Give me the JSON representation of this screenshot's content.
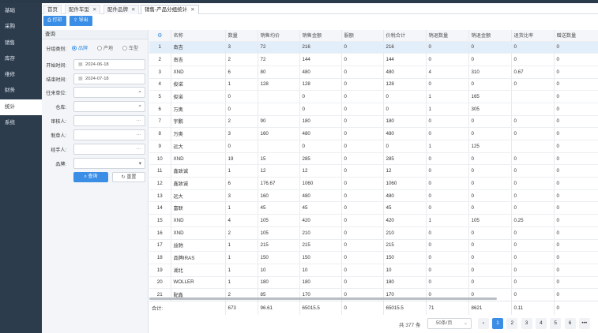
{
  "sidebar": {
    "items": [
      {
        "label": "基础",
        "active": false
      },
      {
        "label": "采购",
        "active": false
      },
      {
        "label": "销售",
        "active": false
      },
      {
        "label": "库存",
        "active": false
      },
      {
        "label": "维修",
        "active": false
      },
      {
        "label": "财务",
        "active": false
      },
      {
        "label": "统计",
        "active": true
      },
      {
        "label": "系统",
        "active": false
      }
    ]
  },
  "tabs": [
    {
      "label": "首页",
      "closable": false,
      "active": false
    },
    {
      "label": "配件车型",
      "closable": true,
      "active": false
    },
    {
      "label": "配件品牌",
      "closable": true,
      "active": false
    },
    {
      "label": "销售-产品分组统计",
      "closable": true,
      "active": true
    }
  ],
  "toolbar": {
    "print_label": "打印",
    "export_label": "导出"
  },
  "query": {
    "title": "查询",
    "group_label": "分组类别:",
    "group_options": [
      "品牌",
      "产地",
      "车型"
    ],
    "group_selected": "品牌",
    "start_label": "开始时间:",
    "start_value": "2024-06-18",
    "end_label": "结束时间:",
    "end_value": "2024-07-18",
    "unit_label": "往来单位:",
    "warehouse_label": "仓库:",
    "auditor_label": "审核人:",
    "maker_label": "制单人:",
    "handler_label": "经手人:",
    "brand_label": "品牌:",
    "search_btn": "查询",
    "reset_btn": "重置"
  },
  "table": {
    "columns": [
      "名称",
      "数量",
      "销售均价",
      "销售金额",
      "服额",
      "价税合计",
      "销退数量",
      "销退金额",
      "退货比率",
      "赠送数量"
    ],
    "rows": [
      [
        "1",
        "南吉",
        "3",
        "72",
        "216",
        "0",
        "216",
        "0",
        "0",
        "0",
        "0"
      ],
      [
        "2",
        "南吉",
        "2",
        "72",
        "144",
        "0",
        "144",
        "0",
        "0",
        "0",
        "0"
      ],
      [
        "3",
        "XND",
        "6",
        "80",
        "480",
        "0",
        "480",
        "4",
        "310",
        "0.67",
        "0"
      ],
      [
        "4",
        "俊诺",
        "1",
        "128",
        "128",
        "0",
        "128",
        "0",
        "0",
        "0",
        "0"
      ],
      [
        "5",
        "俊诺",
        "0",
        "",
        "0",
        "0",
        "0",
        "1",
        "165",
        "",
        "0"
      ],
      [
        "6",
        "万奥",
        "0",
        "",
        "0",
        "0",
        "0",
        "1",
        "305",
        "",
        "0"
      ],
      [
        "7",
        "宇鹏",
        "2",
        "90",
        "180",
        "0",
        "180",
        "0",
        "0",
        "0",
        "0"
      ],
      [
        "8",
        "万奥",
        "3",
        "160",
        "480",
        "0",
        "480",
        "0",
        "0",
        "0",
        "0"
      ],
      [
        "9",
        "远大",
        "0",
        "",
        "0",
        "0",
        "0",
        "1",
        "125",
        "",
        "0"
      ],
      [
        "10",
        "XND",
        "19",
        "15",
        "285",
        "0",
        "285",
        "0",
        "0",
        "0",
        "0"
      ],
      [
        "11",
        "鑫致诚",
        "1",
        "12",
        "12",
        "0",
        "12",
        "0",
        "0",
        "0",
        "0"
      ],
      [
        "12",
        "鑫致诚",
        "6",
        "176.67",
        "1060",
        "0",
        "1060",
        "0",
        "0",
        "0",
        "0"
      ],
      [
        "13",
        "远大",
        "3",
        "160",
        "480",
        "0",
        "480",
        "0",
        "0",
        "0",
        "0"
      ],
      [
        "14",
        "富联",
        "1",
        "45",
        "45",
        "0",
        "45",
        "0",
        "0",
        "0",
        "0"
      ],
      [
        "15",
        "XND",
        "4",
        "105",
        "420",
        "0",
        "420",
        "1",
        "105",
        "0.25",
        "0"
      ],
      [
        "16",
        "XND",
        "2",
        "105",
        "210",
        "0",
        "210",
        "0",
        "0",
        "0",
        "0"
      ],
      [
        "17",
        "益驰",
        "1",
        "215",
        "215",
        "0",
        "215",
        "0",
        "0",
        "0",
        "0"
      ],
      [
        "18",
        "品牌IRAS",
        "1",
        "150",
        "150",
        "0",
        "150",
        "0",
        "0",
        "0",
        "0"
      ],
      [
        "19",
        "湖北",
        "1",
        "10",
        "10",
        "0",
        "10",
        "0",
        "0",
        "0",
        "0"
      ],
      [
        "20",
        "WOLLER",
        "1",
        "180",
        "180",
        "0",
        "180",
        "0",
        "0",
        "0",
        "0"
      ],
      [
        "21",
        "配鑫",
        "2",
        "85",
        "170",
        "0",
        "170",
        "0",
        "0",
        "0",
        "0"
      ]
    ],
    "selected_row": 0,
    "totals": {
      "label": "合计:",
      "values": [
        "673",
        "96.61",
        "65015.5",
        "0",
        "65015.5",
        "71",
        "8621",
        "0.11",
        "0"
      ]
    }
  },
  "pager": {
    "total_text": "共 377 条",
    "page_size": "50条/页",
    "pages": [
      "1",
      "2",
      "3",
      "4",
      "5",
      "6",
      "•••"
    ],
    "current": "1"
  },
  "colors": {
    "accent": "#3a8ee6",
    "sidebar_bg": "#2d3c4d",
    "selected_row": "#e3eefb"
  },
  "icons": {
    "settings": "gear-icon",
    "search": "search-icon",
    "calendar": "calendar-icon",
    "more": "more-dots-icon"
  }
}
